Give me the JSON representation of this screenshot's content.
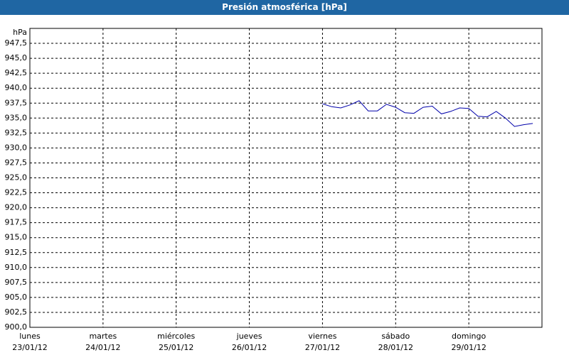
{
  "chart_data": {
    "type": "line",
    "title": "Presión atmosférica [hPa]",
    "y_unit": "hPa",
    "ylim": [
      900,
      950
    ],
    "yticks": [
      {
        "value": 900,
        "label": "900,0"
      },
      {
        "value": 902.5,
        "label": "902,5"
      },
      {
        "value": 905,
        "label": "905,0"
      },
      {
        "value": 907.5,
        "label": "907,5"
      },
      {
        "value": 910,
        "label": "910,0"
      },
      {
        "value": 912.5,
        "label": "912,5"
      },
      {
        "value": 915,
        "label": "915,0"
      },
      {
        "value": 917.5,
        "label": "917,5"
      },
      {
        "value": 920,
        "label": "920,0"
      },
      {
        "value": 922.5,
        "label": "922,5"
      },
      {
        "value": 925,
        "label": "925,0"
      },
      {
        "value": 927.5,
        "label": "927,5"
      },
      {
        "value": 930,
        "label": "930,0"
      },
      {
        "value": 932.5,
        "label": "932,5"
      },
      {
        "value": 935,
        "label": "935,0"
      },
      {
        "value": 937.5,
        "label": "937,5"
      },
      {
        "value": 940,
        "label": "940,0"
      },
      {
        "value": 942.5,
        "label": "942,5"
      },
      {
        "value": 945,
        "label": "945,0"
      },
      {
        "value": 947.5,
        "label": "947,5"
      }
    ],
    "xlim": [
      "2012-01-23",
      "2012-01-30"
    ],
    "xticks": [
      {
        "value": "2012-01-23",
        "label": "23/01/12"
      },
      {
        "value": "2012-01-24",
        "label": "24/01/12"
      },
      {
        "value": "2012-01-25",
        "label": "25/01/12"
      },
      {
        "value": "2012-01-26",
        "label": "26/01/12"
      },
      {
        "value": "2012-01-27",
        "label": "27/01/12"
      },
      {
        "value": "2012-01-28",
        "label": "28/01/12"
      },
      {
        "value": "2012-01-29",
        "label": "29/01/12"
      }
    ],
    "xtick_days": [
      "lunes",
      "martes",
      "miércoles",
      "jueves",
      "viernes",
      "sábado",
      "domingo"
    ],
    "grid": true,
    "x": [
      "2012-01-27T00:00:00Z",
      "2012-01-27T03:00:00Z",
      "2012-01-27T06:00:00Z",
      "2012-01-27T09:00:00Z",
      "2012-01-27T12:00:00Z",
      "2012-01-27T15:00:00Z",
      "2012-01-27T18:00:00Z",
      "2012-01-27T21:00:00Z",
      "2012-01-28T00:00:00Z",
      "2012-01-28T03:00:00Z",
      "2012-01-28T06:00:00Z",
      "2012-01-28T09:00:00Z",
      "2012-01-28T12:00:00Z",
      "2012-01-28T15:00:00Z",
      "2012-01-28T18:00:00Z",
      "2012-01-28T21:00:00Z",
      "2012-01-29T00:00:00Z",
      "2012-01-29T03:00:00Z",
      "2012-01-29T06:00:00Z",
      "2012-01-29T09:00:00Z",
      "2012-01-29T12:00:00Z",
      "2012-01-29T15:00:00Z",
      "2012-01-29T18:00:00Z",
      "2012-01-29T21:00:00Z"
    ],
    "series": [
      {
        "color": "#0000aa",
        "values": [
          937.4,
          936.9,
          936.7,
          937.2,
          937.9,
          936.2,
          936.2,
          937.3,
          936.8,
          935.9,
          935.8,
          936.8,
          937.0,
          935.7,
          936.1,
          936.7,
          936.6,
          935.3,
          935.2,
          936.1,
          935.0,
          933.6,
          933.9,
          934.1
        ]
      }
    ]
  }
}
